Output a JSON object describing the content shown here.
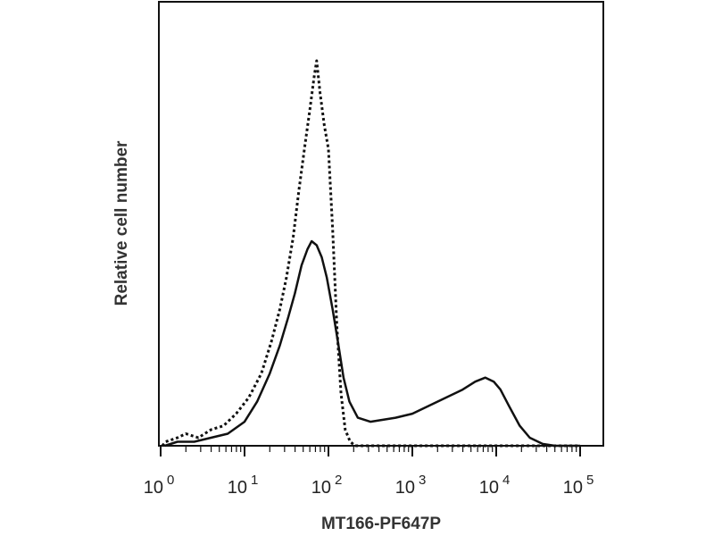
{
  "chart_data": {
    "type": "line",
    "xlabel": "MT166-PF647P",
    "ylabel": "Relative cell number",
    "xscale": "log",
    "xlim": [
      0,
      5
    ],
    "ylim": [
      0,
      1.0
    ],
    "grid": false,
    "legend": "none",
    "x_ticks": [
      {
        "base": "10",
        "exp": "0",
        "value": 0
      },
      {
        "base": "10",
        "exp": "1",
        "value": 1
      },
      {
        "base": "10",
        "exp": "2",
        "value": 2
      },
      {
        "base": "10",
        "exp": "3",
        "value": 3
      },
      {
        "base": "10",
        "exp": "4",
        "value": 4
      },
      {
        "base": "10",
        "exp": "5",
        "value": 5
      }
    ],
    "series": [
      {
        "style": "dotted",
        "color": "#111111",
        "points": [
          [
            0.02,
            0.0
          ],
          [
            0.06,
            0.01
          ],
          [
            0.2,
            0.02
          ],
          [
            0.3,
            0.03
          ],
          [
            0.45,
            0.02
          ],
          [
            0.6,
            0.04
          ],
          [
            0.75,
            0.05
          ],
          [
            0.9,
            0.08
          ],
          [
            1.05,
            0.12
          ],
          [
            1.2,
            0.18
          ],
          [
            1.32,
            0.26
          ],
          [
            1.42,
            0.34
          ],
          [
            1.5,
            0.42
          ],
          [
            1.58,
            0.52
          ],
          [
            1.65,
            0.64
          ],
          [
            1.72,
            0.75
          ],
          [
            1.78,
            0.84
          ],
          [
            1.83,
            0.92
          ],
          [
            1.86,
            0.96
          ],
          [
            1.9,
            0.88
          ],
          [
            1.95,
            0.8
          ],
          [
            2.0,
            0.74
          ],
          [
            2.05,
            0.54
          ],
          [
            2.1,
            0.3
          ],
          [
            2.15,
            0.13
          ],
          [
            2.2,
            0.04
          ],
          [
            2.26,
            0.01
          ],
          [
            2.32,
            0.0
          ],
          [
            5.0,
            0.0
          ]
        ]
      },
      {
        "style": "solid",
        "color": "#111111",
        "points": [
          [
            0.05,
            0.0
          ],
          [
            0.2,
            0.01
          ],
          [
            0.4,
            0.01
          ],
          [
            0.6,
            0.02
          ],
          [
            0.8,
            0.03
          ],
          [
            1.0,
            0.06
          ],
          [
            1.15,
            0.11
          ],
          [
            1.3,
            0.18
          ],
          [
            1.42,
            0.25
          ],
          [
            1.52,
            0.32
          ],
          [
            1.6,
            0.38
          ],
          [
            1.68,
            0.45
          ],
          [
            1.75,
            0.49
          ],
          [
            1.8,
            0.51
          ],
          [
            1.86,
            0.5
          ],
          [
            1.92,
            0.47
          ],
          [
            1.98,
            0.42
          ],
          [
            2.05,
            0.34
          ],
          [
            2.12,
            0.25
          ],
          [
            2.18,
            0.17
          ],
          [
            2.25,
            0.11
          ],
          [
            2.35,
            0.07
          ],
          [
            2.5,
            0.06
          ],
          [
            2.8,
            0.07
          ],
          [
            3.0,
            0.08
          ],
          [
            3.2,
            0.1
          ],
          [
            3.4,
            0.12
          ],
          [
            3.6,
            0.14
          ],
          [
            3.75,
            0.16
          ],
          [
            3.87,
            0.17
          ],
          [
            3.97,
            0.16
          ],
          [
            4.05,
            0.14
          ],
          [
            4.15,
            0.1
          ],
          [
            4.28,
            0.05
          ],
          [
            4.4,
            0.02
          ],
          [
            4.55,
            0.005
          ],
          [
            4.7,
            0.0
          ],
          [
            5.0,
            0.0
          ]
        ]
      }
    ]
  }
}
